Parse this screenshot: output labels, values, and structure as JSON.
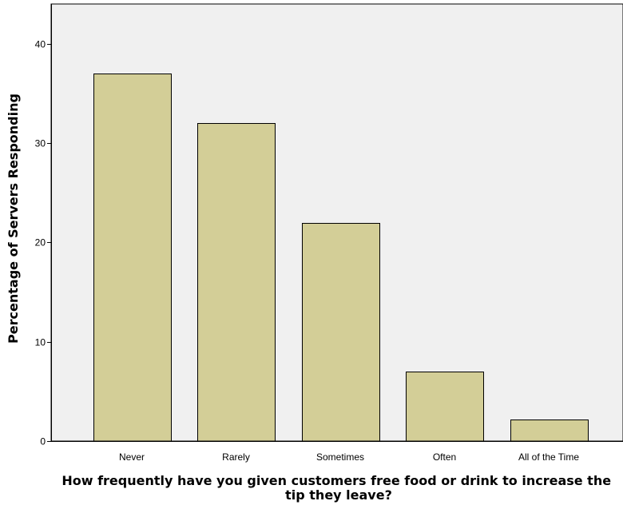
{
  "chart_data": {
    "type": "bar",
    "categories": [
      "Never",
      "Rarely",
      "Sometimes",
      "Often",
      "All of the Time"
    ],
    "values": [
      37,
      32,
      22,
      7,
      2.2
    ],
    "title": "",
    "xlabel_lines": [
      "How frequently have you given customers free food or drink to increase the",
      "tip they leave?"
    ],
    "ylabel": "Percentage of Servers Responding",
    "ylim": [
      0,
      44
    ],
    "yticks": [
      0,
      10,
      20,
      30,
      40
    ],
    "grid": false,
    "colors": {
      "bar_fill": "#d3ce97",
      "bar_stroke": "#000000",
      "plot_background": "#f0f0f0",
      "axis": "#000000"
    }
  }
}
